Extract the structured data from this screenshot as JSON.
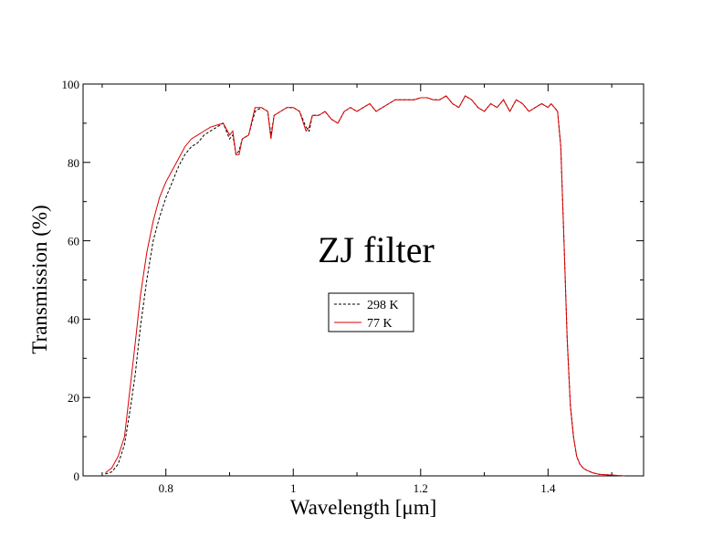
{
  "chart_data": {
    "type": "line",
    "annotation": "ZJ filter",
    "xlabel": "Wavelength [μm]",
    "ylabel": "Transmission (%)",
    "xlim": [
      0.67,
      1.55
    ],
    "ylim": [
      0,
      100
    ],
    "x_ticks": [
      0.8,
      1.0,
      1.2,
      1.4
    ],
    "x_tick_labels": [
      "0.8",
      "1",
      "1.2",
      "1.4"
    ],
    "y_ticks": [
      0,
      20,
      40,
      60,
      80,
      100
    ],
    "y_tick_labels": [
      "0",
      "20",
      "40",
      "60",
      "80",
      "100"
    ],
    "legend_position": "center",
    "grid": false,
    "series": [
      {
        "name": "298 K",
        "color": "#000000",
        "dash": "dashed",
        "x": [
          0.705,
          0.715,
          0.725,
          0.735,
          0.745,
          0.752,
          0.76,
          0.77,
          0.78,
          0.79,
          0.8,
          0.81,
          0.82,
          0.83,
          0.84,
          0.85,
          0.86,
          0.87,
          0.88,
          0.89,
          0.9,
          0.905,
          0.91,
          0.915,
          0.92,
          0.93,
          0.94,
          0.95,
          0.96,
          0.965,
          0.97,
          0.98,
          0.99,
          1.0,
          1.01,
          1.02,
          1.025,
          1.03,
          1.04,
          1.05,
          1.06,
          1.07,
          1.08,
          1.09,
          1.1,
          1.11,
          1.12,
          1.13,
          1.14,
          1.15,
          1.16,
          1.17,
          1.18,
          1.19,
          1.2,
          1.21,
          1.22,
          1.23,
          1.24,
          1.25,
          1.26,
          1.27,
          1.28,
          1.29,
          1.3,
          1.31,
          1.32,
          1.33,
          1.34,
          1.35,
          1.36,
          1.37,
          1.38,
          1.39,
          1.4,
          1.405,
          1.41,
          1.415,
          1.42,
          1.425,
          1.43,
          1.435,
          1.44,
          1.445,
          1.45,
          1.455,
          1.46,
          1.47,
          1.48,
          1.5,
          1.52
        ],
        "y": [
          0.5,
          1,
          3,
          8,
          18,
          26,
          38,
          50,
          60,
          66,
          71,
          75,
          79,
          82,
          84,
          85,
          87,
          88,
          89,
          90,
          86,
          87,
          82,
          83,
          86,
          87,
          93,
          94,
          93,
          87,
          92,
          93,
          94,
          94,
          93,
          89,
          88,
          92,
          92,
          93,
          91,
          90,
          93,
          94,
          93,
          94,
          95,
          93,
          94,
          95,
          96,
          96,
          96,
          96,
          96.5,
          96.5,
          96,
          96,
          97,
          95,
          94,
          97,
          96,
          94,
          93,
          95,
          94,
          96,
          93,
          96,
          95,
          93,
          94,
          95,
          94,
          95,
          94,
          93,
          84,
          60,
          35,
          18,
          10,
          5,
          3,
          2,
          1.5,
          0.8,
          0.4,
          0.2,
          0
        ]
      },
      {
        "name": "77 K",
        "color": "#dd0000",
        "dash": "solid",
        "x": [
          0.705,
          0.715,
          0.725,
          0.735,
          0.745,
          0.752,
          0.76,
          0.77,
          0.78,
          0.79,
          0.8,
          0.81,
          0.82,
          0.83,
          0.84,
          0.85,
          0.86,
          0.87,
          0.88,
          0.89,
          0.9,
          0.905,
          0.91,
          0.915,
          0.92,
          0.93,
          0.94,
          0.95,
          0.96,
          0.965,
          0.97,
          0.98,
          0.99,
          1.0,
          1.01,
          1.02,
          1.025,
          1.03,
          1.04,
          1.05,
          1.06,
          1.07,
          1.08,
          1.09,
          1.1,
          1.11,
          1.12,
          1.13,
          1.14,
          1.15,
          1.16,
          1.17,
          1.18,
          1.19,
          1.2,
          1.21,
          1.22,
          1.23,
          1.24,
          1.25,
          1.26,
          1.27,
          1.28,
          1.29,
          1.3,
          1.31,
          1.32,
          1.33,
          1.34,
          1.35,
          1.36,
          1.37,
          1.38,
          1.39,
          1.4,
          1.405,
          1.41,
          1.415,
          1.42,
          1.425,
          1.43,
          1.435,
          1.44,
          1.445,
          1.45,
          1.455,
          1.46,
          1.47,
          1.48,
          1.5,
          1.52
        ],
        "y": [
          0.8,
          2,
          5,
          10,
          24,
          34,
          46,
          57,
          65,
          71,
          75,
          78,
          81,
          84,
          86,
          87,
          88,
          89,
          89.5,
          90,
          87,
          88,
          82,
          82,
          86,
          87,
          94,
          94,
          93,
          86,
          92,
          93,
          94,
          94,
          93,
          88,
          89,
          92,
          92,
          93,
          91,
          90,
          93,
          94,
          93,
          94,
          95,
          93,
          94,
          95,
          96,
          96,
          96,
          96,
          96.5,
          96.5,
          96,
          96,
          97,
          95,
          94,
          97,
          96,
          94,
          93,
          95,
          94,
          96,
          93,
          96,
          95,
          93,
          94,
          95,
          94,
          95,
          94,
          93,
          84,
          60,
          35,
          18,
          10,
          5,
          3,
          2,
          1.5,
          0.8,
          0.4,
          0.2,
          0
        ]
      }
    ]
  }
}
